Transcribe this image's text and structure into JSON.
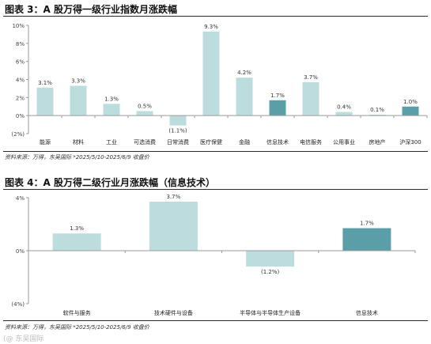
{
  "figure3": {
    "title": "图表 3：A 股万得一级行业指数月涨跌幅",
    "source": "资料来源：万得，东吴国际    *2025/5/10-2025/6/9 收盘价"
  },
  "figure4": {
    "title": "图表 4：A 股万得二级行业月涨跌幅（信息技术）",
    "source": "资料来源：万得，东吴国际    *2025/5/10-2025/6/9 收盘价"
  },
  "watermark": "(@ 东吴国际",
  "colors": {
    "bar": "#bcdcde",
    "highlight": "#5a9fa8",
    "axis": "#9a9a9a",
    "rule": "#2b2b2b"
  },
  "chart_data": [
    {
      "type": "bar",
      "title": "图表 3：A 股万得一级行业指数月涨跌幅",
      "categories": [
        "能源",
        "材料",
        "工业",
        "可选消费",
        "日常消费",
        "医疗保健",
        "金融",
        "信息技术",
        "电信服务",
        "公用事业",
        "房地产",
        "沪深300"
      ],
      "values": [
        3.1,
        3.3,
        1.3,
        0.5,
        -1.1,
        9.3,
        4.2,
        1.7,
        3.7,
        0.4,
        0.1,
        1.0
      ],
      "value_labels": [
        "3.1%",
        "3.3%",
        "1.3%",
        "0.5%",
        "(1.1%)",
        "9.3%",
        "4.2%",
        "1.7%",
        "3.7%",
        "0.4%",
        "0.1%",
        "1.0%"
      ],
      "highlight": [
        "信息技术",
        "沪深300"
      ],
      "ylim": [
        -2,
        10
      ],
      "yticks": [
        10,
        8,
        6,
        4,
        2,
        0,
        -2
      ],
      "ytick_labels": [
        "10%",
        "8%",
        "6%",
        "4%",
        "2%",
        "0%",
        "(2%)"
      ],
      "grid": false
    },
    {
      "type": "bar",
      "title": "图表 4：A 股万得二级行业月涨跌幅（信息技术）",
      "categories": [
        "软件与服务",
        "技术硬件与设备",
        "半导体与半导体生产设备",
        "信息技术"
      ],
      "values": [
        1.3,
        3.7,
        -1.2,
        1.7
      ],
      "value_labels": [
        "1.3%",
        "3.7%",
        "(1.2%)",
        "1.7%"
      ],
      "highlight": [
        "信息技术"
      ],
      "ylim": [
        -4,
        4
      ],
      "yticks": [
        4,
        0,
        -4
      ],
      "ytick_labels": [
        "4%",
        "0%",
        "(4%)"
      ],
      "grid": false
    }
  ]
}
